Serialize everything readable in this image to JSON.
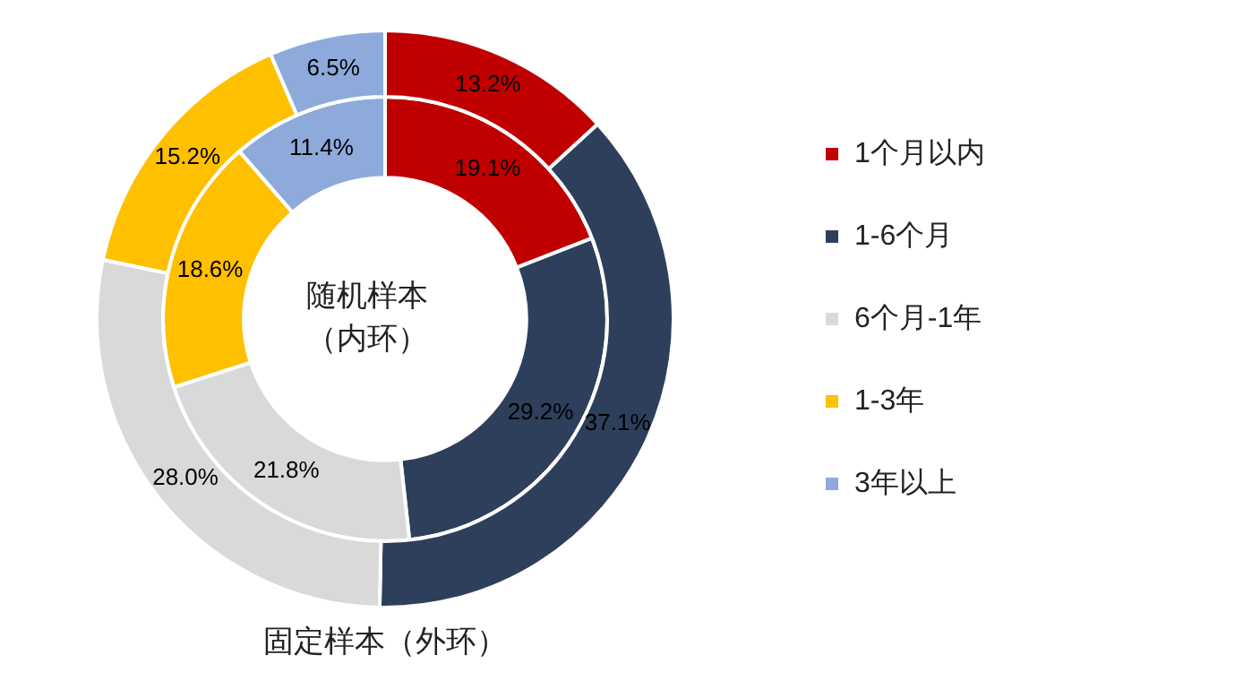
{
  "chart_data": {
    "type": "donut",
    "categories": [
      "1个月以内",
      "1-6个月",
      "6个月-1年",
      "1-3年",
      "3年以上"
    ],
    "colors": [
      "#c00000",
      "#2e3f5c",
      "#d9d9d9",
      "#ffc000",
      "#8eaadb"
    ],
    "series": [
      {
        "name": "固定样本（外环）",
        "values": [
          13.2,
          37.1,
          28.0,
          15.2,
          6.5
        ],
        "value_labels": [
          "13.2%",
          "37.1%",
          "28.0%",
          "15.2%",
          "6.5%"
        ]
      },
      {
        "name": "随机样本（内环）",
        "values": [
          19.1,
          29.2,
          21.8,
          18.6,
          11.4
        ],
        "value_labels": [
          "19.1%",
          "29.2%",
          "21.8%",
          "18.6%",
          "11.4%"
        ]
      }
    ],
    "legend": "right"
  }
}
